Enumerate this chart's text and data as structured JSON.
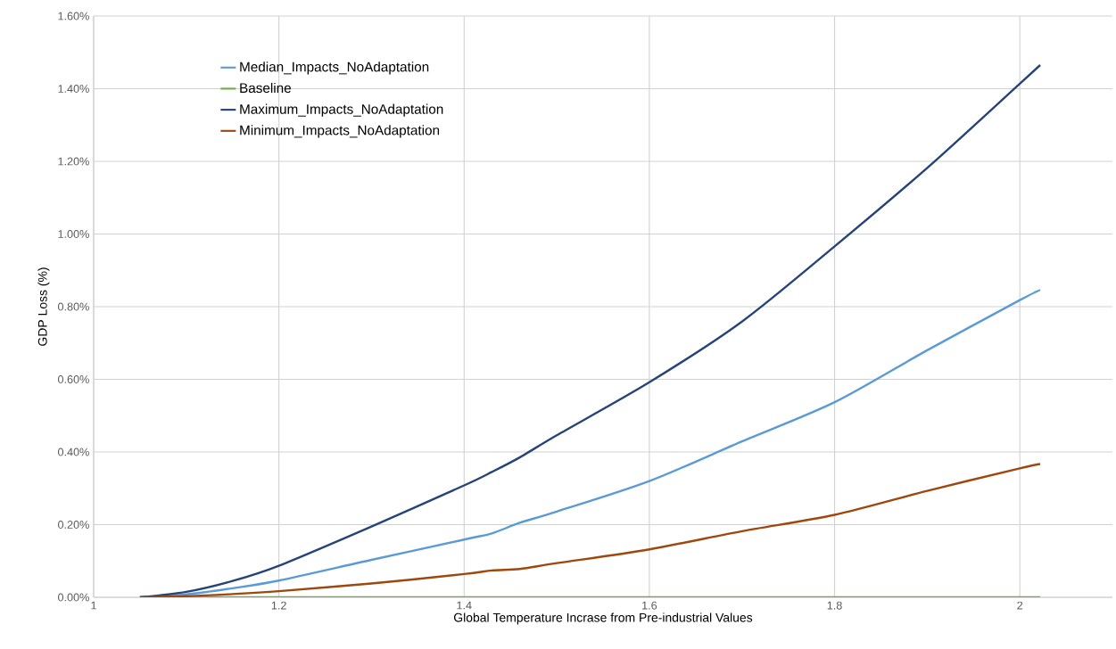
{
  "chart_data": {
    "type": "line",
    "xlabel": "Global Temperature Incrase from Pre-industrial Values",
    "ylabel": "GDP Loss  (%)",
    "x": [
      1.05,
      1.1,
      1.15,
      1.2,
      1.3,
      1.4,
      1.43,
      1.46,
      1.5,
      1.6,
      1.7,
      1.8,
      1.9,
      2.0,
      2.022
    ],
    "series": [
      {
        "name": "Median_Impacts_NoAdaptation",
        "color": "#5b9bd5",
        "values": [
          0,
          0.008,
          0.025,
          0.046,
          0.103,
          0.159,
          0.176,
          0.205,
          0.236,
          0.32,
          0.429,
          0.537,
          0.68,
          0.818,
          0.846
        ]
      },
      {
        "name": "Baseline",
        "color": "#70ad47",
        "values": [
          0,
          0,
          0,
          0,
          0,
          0,
          0,
          0,
          0,
          0,
          0,
          0,
          0,
          0,
          0
        ]
      },
      {
        "name": "Maximum_Impacts_NoAdaptation",
        "color": "#264478",
        "values": [
          0,
          0.015,
          0.045,
          0.087,
          0.195,
          0.308,
          0.345,
          0.385,
          0.446,
          0.592,
          0.759,
          0.966,
          1.182,
          1.414,
          1.465
        ]
      },
      {
        "name": "Minimum_Impacts_NoAdaptation",
        "color": "#9e480e",
        "values": [
          0,
          0.003,
          0.009,
          0.017,
          0.038,
          0.064,
          0.074,
          0.078,
          0.094,
          0.132,
          0.182,
          0.227,
          0.293,
          0.355,
          0.367
        ]
      }
    ],
    "xlim": [
      1,
      2.1
    ],
    "xticks": [
      1,
      1.2,
      1.4,
      1.6,
      1.8,
      2
    ],
    "ylim": [
      0,
      1.6
    ],
    "yticks": [
      {
        "value": 0,
        "label": "0.00%"
      },
      {
        "value": 0.2,
        "label": "0.20%"
      },
      {
        "value": 0.4,
        "label": "0.40%"
      },
      {
        "value": 0.6,
        "label": "0.60%"
      },
      {
        "value": 0.8,
        "label": "0.80%"
      },
      {
        "value": 1.0,
        "label": "1.00%"
      },
      {
        "value": 1.2,
        "label": "1.20%"
      },
      {
        "value": 1.4,
        "label": "1.40%"
      },
      {
        "value": 1.6,
        "label": "1.60%"
      }
    ],
    "grid": true,
    "legend": "top left",
    "marker": "none",
    "line_style": "solid"
  }
}
